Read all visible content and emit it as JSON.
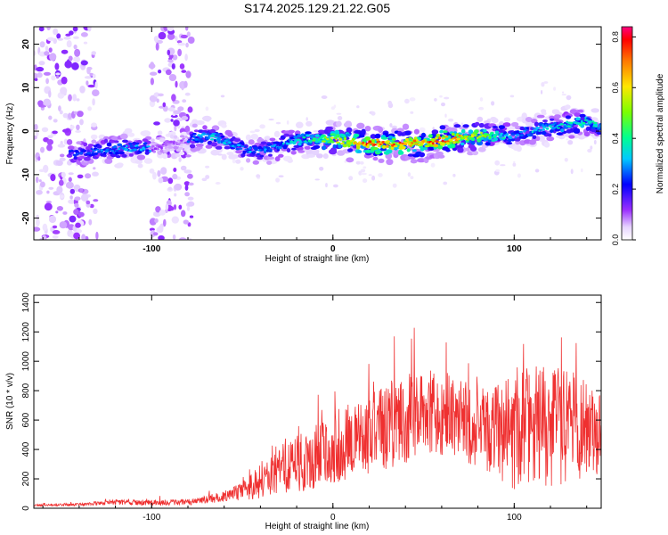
{
  "title": "S174.2025.129.21.22.G05",
  "colors": {
    "snr_line": "#ef3030",
    "axis": "#000000",
    "spectrogram_core": "#d21c3c",
    "spectrogram_edge": "#7b2cff"
  },
  "chart_data": [
    {
      "type": "heatmap",
      "xlabel": "Height of straight line (km)",
      "ylabel": "Frequency (Hz)",
      "xlim": [
        -165,
        148
      ],
      "ylim": [
        -25,
        24
      ],
      "xticks": [
        -100,
        0,
        100
      ],
      "yticks": [
        -20,
        -10,
        0,
        10,
        20
      ],
      "colorbar": {
        "label": "Normalized spectral amplitude",
        "range": [
          0,
          0.84
        ],
        "ticks": [
          0.0,
          0.2,
          0.4,
          0.6,
          0.8
        ],
        "placement": "right"
      },
      "ridge": {
        "x": [
          -165,
          -140,
          -120,
          -100,
          -80,
          -70,
          -50,
          -40,
          -20,
          0,
          20,
          40,
          60,
          80,
          100,
          120,
          140,
          148
        ],
        "frequency": [
          -5,
          -5,
          -4,
          -4,
          -2,
          -1,
          -4,
          -5,
          -2,
          -2,
          -3,
          -3,
          -2,
          -1,
          -1,
          1,
          2,
          1
        ],
        "peak_amplitude": [
          0.1,
          0.25,
          0.3,
          0.3,
          0.25,
          0.35,
          0.3,
          0.3,
          0.35,
          0.55,
          0.75,
          0.7,
          0.75,
          0.55,
          0.3,
          0.35,
          0.4,
          0.35
        ]
      },
      "noisy_regions": [
        [
          -165,
          -130
        ],
        [
          -100,
          -78
        ]
      ]
    },
    {
      "type": "line",
      "xlabel": "Height of straight line (km)",
      "ylabel": "SNR (10 * v/v)",
      "xlim": [
        -165,
        148
      ],
      "ylim": [
        0,
        1450
      ],
      "xticks": [
        -100,
        0,
        100
      ],
      "yticks": [
        0,
        200,
        400,
        600,
        800,
        1000,
        1200,
        1400
      ],
      "series": [
        {
          "x": [
            -165,
            -140,
            -120,
            -100,
            -80,
            -70,
            -60,
            -50,
            -40,
            -30,
            -20,
            -10,
            0,
            10,
            20,
            30,
            40,
            50,
            60,
            70,
            80,
            90,
            100,
            110,
            120,
            130,
            140,
            148
          ],
          "mean": [
            20,
            25,
            40,
            40,
            40,
            60,
            80,
            120,
            180,
            250,
            300,
            350,
            400,
            450,
            500,
            550,
            600,
            620,
            640,
            600,
            560,
            520,
            550,
            580,
            560,
            560,
            540,
            500
          ],
          "amplitude": [
            10,
            15,
            25,
            30,
            30,
            40,
            60,
            100,
            180,
            220,
            300,
            330,
            380,
            400,
            420,
            450,
            450,
            450,
            430,
            420,
            430,
            480,
            650,
            600,
            650,
            600,
            500,
            400
          ]
        }
      ]
    }
  ]
}
